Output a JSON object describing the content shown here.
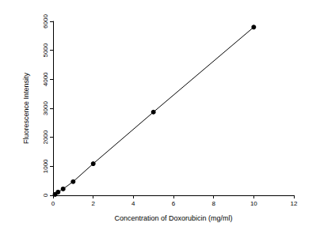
{
  "chart_data": {
    "type": "line",
    "xlabel": "Concentration of Doxorubicin (mg/ml)",
    "ylabel": "Fluorescence Intensity",
    "x": [
      0.1,
      0.25,
      0.5,
      1,
      2,
      5,
      10
    ],
    "values": [
      30,
      110,
      220,
      470,
      1090,
      2870,
      5800
    ],
    "color": "#000000",
    "marker": "circle",
    "xlim": [
      0,
      12
    ],
    "xticks": [
      0,
      2,
      4,
      6,
      8,
      10,
      12
    ],
    "ylim": [
      0,
      6000
    ],
    "yticks": [
      0,
      1000,
      2000,
      3000,
      4000,
      5000,
      6000
    ],
    "grid": false
  }
}
